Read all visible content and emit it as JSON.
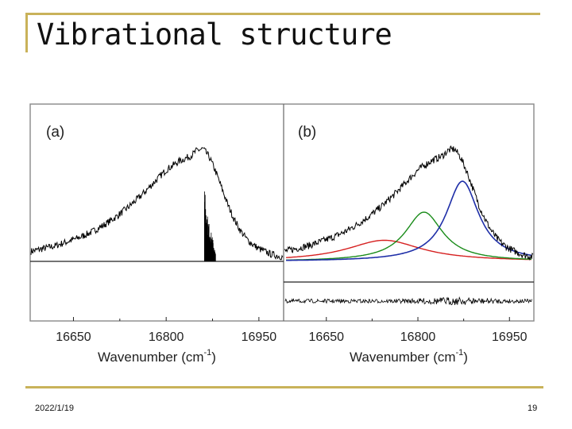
{
  "slide": {
    "title": "Vibrational structure",
    "date": "2022/1/19",
    "page_number": "19",
    "accent_color": "#c9b25a"
  },
  "chart_data": [
    {
      "type": "line",
      "panel_label": "(a)",
      "xlabel_main": "Wavenumber (cm",
      "xlabel_sup": "-1",
      "xlabel_end": ")",
      "xlim": [
        16580,
        16990
      ],
      "xticks": [
        16650,
        16800,
        16950
      ],
      "grid": false,
      "series": [
        {
          "type": "line",
          "color": "#000000",
          "x": [
            16580,
            16600,
            16620,
            16640,
            16660,
            16680,
            16700,
            16720,
            16740,
            16760,
            16780,
            16800,
            16820,
            16840,
            16850,
            16860,
            16870,
            16880,
            16890,
            16900,
            16910,
            16920,
            16930,
            16940,
            16950,
            16960,
            16970,
            16980,
            16990
          ],
          "y": [
            0.07,
            0.09,
            0.11,
            0.14,
            0.17,
            0.21,
            0.26,
            0.32,
            0.39,
            0.47,
            0.56,
            0.65,
            0.71,
            0.75,
            0.79,
            0.8,
            0.74,
            0.64,
            0.52,
            0.4,
            0.3,
            0.22,
            0.16,
            0.12,
            0.09,
            0.07,
            0.05,
            0.04,
            0.03
          ]
        },
        {
          "type": "stick",
          "color": "#000000",
          "x": [
            16862,
            16864,
            16866,
            16868,
            16870,
            16872,
            16874,
            16876,
            16878,
            16880
          ],
          "y": [
            0.62,
            0.48,
            0.35,
            0.3,
            0.26,
            0.22,
            0.19,
            0.15,
            0.1,
            0.05
          ]
        }
      ]
    },
    {
      "type": "line",
      "panel_label": "(b)",
      "xlabel_main": "Wavenumber (cm",
      "xlabel_sup": "-1",
      "xlabel_end": ")",
      "xlim": [
        16580,
        16990
      ],
      "xticks": [
        16650,
        16800,
        16950
      ],
      "grid": false,
      "series": [
        {
          "type": "line",
          "color": "#000000",
          "x": [
            16580,
            16600,
            16620,
            16640,
            16660,
            16680,
            16700,
            16720,
            16740,
            16760,
            16780,
            16800,
            16820,
            16840,
            16850,
            16860,
            16870,
            16880,
            16890,
            16900,
            16910,
            16920,
            16930,
            16940,
            16950,
            16960,
            16970,
            16980,
            16990
          ],
          "y": [
            0.07,
            0.09,
            0.11,
            0.14,
            0.17,
            0.21,
            0.26,
            0.32,
            0.39,
            0.47,
            0.56,
            0.65,
            0.71,
            0.75,
            0.79,
            0.8,
            0.74,
            0.64,
            0.52,
            0.4,
            0.3,
            0.22,
            0.16,
            0.12,
            0.09,
            0.07,
            0.05,
            0.04,
            0.03
          ]
        },
        {
          "type": "lorentzian",
          "color": "#d62020",
          "center": 16745,
          "fwhm": 150,
          "amplitude": 0.15
        },
        {
          "type": "lorentzian",
          "color": "#1a8c1a",
          "center": 16810,
          "fwhm": 75,
          "amplitude": 0.35
        },
        {
          "type": "lorentzian",
          "color": "#1f2fa8",
          "center": 16873,
          "fwhm": 65,
          "amplitude": 0.57
        },
        {
          "type": "residual",
          "color": "#000000"
        }
      ]
    }
  ]
}
